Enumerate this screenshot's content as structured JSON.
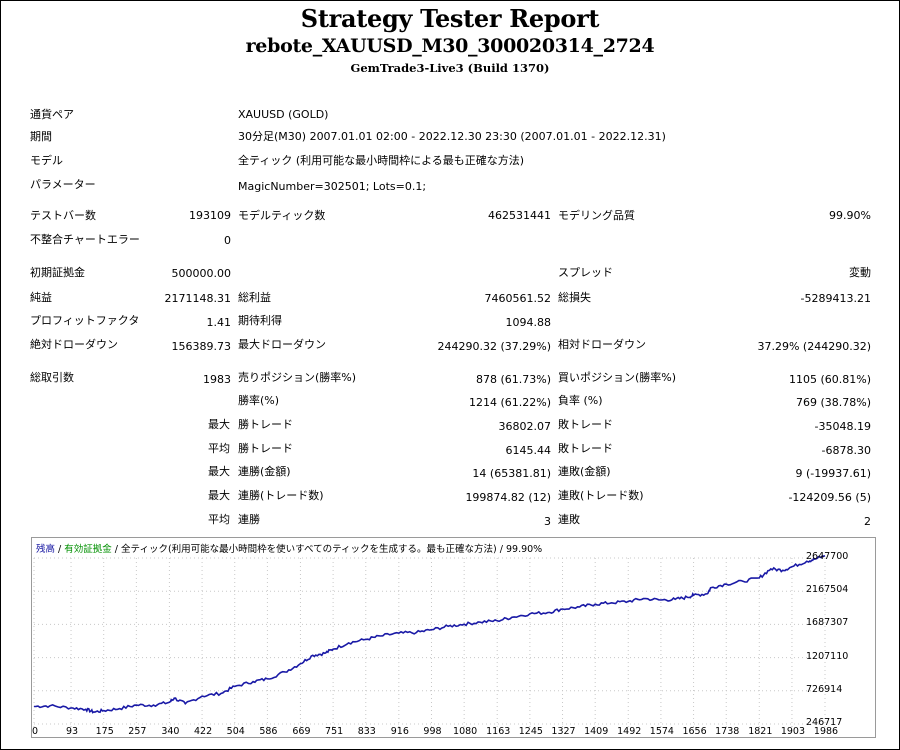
{
  "header": {
    "title": "Strategy Tester Report",
    "subtitle": "rebote_XAUUSD_M30_300020314_2724",
    "server": "GemTrade3-Live3 (Build 1370)"
  },
  "info": {
    "symbol_label": "通貨ペア",
    "symbol": "XAUUSD (GOLD)",
    "period_label": "期間",
    "period": "30分足(M30) 2007.01.01 02:00 - 2022.12.30 23:30 (2007.01.01 - 2022.12.31)",
    "model_label": "モデル",
    "model": "全ティック (利用可能な最小時間枠による最も正確な方法)",
    "params_label": "パラメーター",
    "params": "MagicNumber=302501; Lots=0.1;"
  },
  "stats": {
    "bars_label": "テストバー数",
    "bars": "193109",
    "ticks_label": "モデルティック数",
    "ticks": "462531441",
    "quality_label": "モデリング品質",
    "quality": "99.90%",
    "errors_label": "不整合チャートエラー",
    "errors": "0",
    "deposit_label": "初期証拠金",
    "deposit": "500000.00",
    "spread_label": "スプレッド",
    "spread": "変動",
    "net_label": "純益",
    "net": "2171148.31",
    "gross_profit_label": "総利益",
    "gross_profit": "7460561.52",
    "gross_loss_label": "総損失",
    "gross_loss": "-5289413.21",
    "pf_label": "プロフィットファクタ",
    "pf": "1.41",
    "payoff_label": "期待利得",
    "payoff": "1094.88",
    "abs_dd_label": "絶対ドローダウン",
    "abs_dd": "156389.73",
    "max_dd_label": "最大ドローダウン",
    "max_dd": "244290.32 (37.29%)",
    "rel_dd_label": "相対ドローダウン",
    "rel_dd": "37.29% (244290.32)",
    "trades_label": "総取引数",
    "trades": "1983",
    "short_label": "売りポジション(勝率%)",
    "short": "878 (61.73%)",
    "long_label": "買いポジション(勝率%)",
    "long": "1105 (60.81%)",
    "win_label": "勝率(%)",
    "win": "1214 (61.22%)",
    "loss_label": "負率 (%)",
    "loss": "769 (38.78%)",
    "max_word": "最大",
    "avg_word": "平均",
    "win_trade_label": "勝トレード",
    "loss_trade_label": "敗トレード",
    "largest_win": "36802.07",
    "largest_loss": "-35048.19",
    "avg_win": "6145.44",
    "avg_loss": "-6878.30",
    "cons_win_amount_label": "連勝(金額)",
    "cons_win_amount": "14 (65381.81)",
    "cons_loss_amount_label": "連敗(金額)",
    "cons_loss_amount": "9 (-19937.61)",
    "cons_win_trades_label": "連勝(トレード数)",
    "cons_win_trades": "199874.82 (12)",
    "cons_loss_trades_label": "連敗(トレード数)",
    "cons_loss_trades": "-124209.56 (5)",
    "avg_cons_win_label": "連勝",
    "avg_cons_win": "3",
    "avg_cons_loss_label": "連敗",
    "avg_cons_loss": "2"
  },
  "chart_legend": {
    "balance": "残高",
    "sep1": " / ",
    "equity": "有効証拠金",
    "rest": " / 全ティック(利用可能な最小時間枠を使いすべてのティックを生成する。最も正確な方法) / 99.90%"
  },
  "chart_data": {
    "type": "line",
    "yticks": [
      "2647700",
      "2167504",
      "1687307",
      "1207110",
      "726914",
      "246717"
    ],
    "ylim": [
      246717,
      2647700
    ],
    "xticks": [
      "0",
      "93",
      "175",
      "257",
      "340",
      "422",
      "504",
      "586",
      "669",
      "751",
      "833",
      "916",
      "998",
      "1080",
      "1163",
      "1245",
      "1327",
      "1409",
      "1492",
      "1574",
      "1656",
      "1738",
      "1821",
      "1903",
      "1986"
    ],
    "xlim": [
      0,
      1986
    ],
    "series": [
      {
        "name": "残高",
        "color": "#1a1aa6",
        "x": [
          0,
          40,
          93,
          130,
          150,
          175,
          215,
          257,
          300,
          340,
          352,
          380,
          422,
          470,
          504,
          550,
          586,
          630,
          669,
          700,
          730,
          751,
          790,
          833,
          870,
          916,
          960,
          998,
          1040,
          1080,
          1120,
          1163,
          1200,
          1245,
          1290,
          1327,
          1370,
          1409,
          1450,
          1492,
          1530,
          1574,
          1610,
          1640,
          1656,
          1690,
          1700,
          1738,
          1780,
          1821,
          1850,
          1880,
          1903,
          1940,
          1960,
          1986
        ],
        "y": [
          500000,
          510000,
          480000,
          460000,
          420000,
          440000,
          470000,
          520000,
          520000,
          560000,
          620000,
          540000,
          650000,
          690000,
          790000,
          860000,
          900000,
          1000000,
          1120000,
          1240000,
          1270000,
          1330000,
          1420000,
          1470000,
          1520000,
          1560000,
          1570000,
          1610000,
          1660000,
          1690000,
          1720000,
          1740000,
          1790000,
          1840000,
          1860000,
          1910000,
          1940000,
          1980000,
          2000000,
          2020000,
          2060000,
          2040000,
          2050000,
          2080000,
          2110000,
          2130000,
          2220000,
          2270000,
          2310000,
          2360000,
          2490000,
          2470000,
          2520000,
          2600000,
          2630000,
          2680000
        ]
      }
    ]
  }
}
